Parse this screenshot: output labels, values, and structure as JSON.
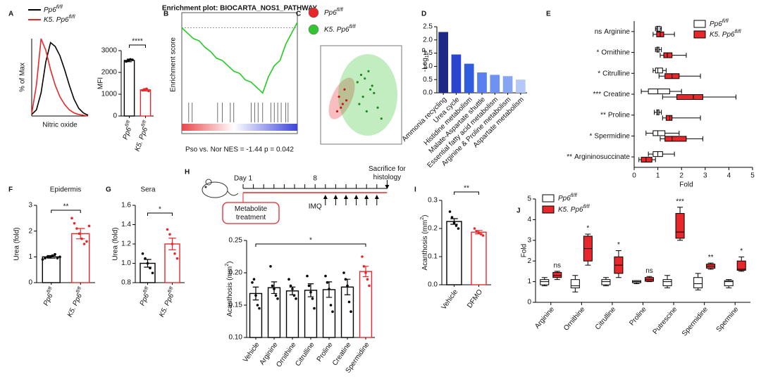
{
  "chart_data": [
    {
      "panel": "A",
      "type": "line",
      "xlabel": "Nitric oxide",
      "ylabel": "% of Max",
      "x": [
        0,
        1,
        2,
        3,
        4,
        5,
        6,
        7,
        8,
        9,
        10,
        11,
        12
      ],
      "xlim": [
        0,
        12
      ],
      "ylim": [
        0,
        100
      ],
      "series": [
        {
          "name": [
            "Pp6",
            "fl/fl"
          ],
          "color": "#000000",
          "values": [
            2,
            8,
            30,
            70,
            95,
            90,
            78,
            60,
            40,
            22,
            10,
            4,
            1
          ]
        },
        {
          "name": [
            "K5. Pp6",
            "fl/fl"
          ],
          "color": "#e8272a",
          "values": [
            3,
            40,
            100,
            85,
            60,
            40,
            25,
            15,
            8,
            4,
            2,
            1,
            0
          ]
        }
      ]
    },
    {
      "type": "bar",
      "ylabel": "MFI",
      "categories": [
        [
          "Pp6",
          "fl/fl"
        ],
        [
          "K5. Pp6",
          "fl/fl"
        ]
      ],
      "values": [
        2550,
        1200
      ],
      "errors": [
        60,
        50
      ],
      "colors": [
        "#000000",
        "#e8272a"
      ],
      "bar_style": "outline",
      "points": [
        [
          2500,
          2550,
          2600,
          2580
        ],
        [
          1180,
          1220,
          1250,
          1150
        ]
      ],
      "ylim": [
        0,
        3000
      ],
      "yticks": [
        0,
        1000,
        2000,
        3000
      ],
      "significance": "****"
    },
    {
      "panel": "B",
      "type": "line",
      "title": "Enrichment plot: BIOCARTA_NOS1_PATHWAY",
      "ylabel": "Enrichment score",
      "caption": "Pso vs. Nor NES = -1.44 p = 0.042",
      "x": [
        0,
        1,
        2,
        3,
        4,
        5,
        6,
        7,
        8,
        9,
        10,
        11,
        12,
        13,
        14,
        15,
        16,
        17,
        18,
        19,
        20
      ],
      "xlim": [
        0,
        20
      ],
      "ylim": [
        -0.65,
        0.1
      ],
      "color": "#22cc22",
      "values": [
        0,
        -0.05,
        -0.1,
        -0.12,
        -0.18,
        -0.22,
        -0.28,
        -0.3,
        -0.35,
        -0.4,
        -0.42,
        -0.48,
        -0.5,
        -0.55,
        -0.6,
        -0.45,
        -0.35,
        -0.3,
        -0.15,
        -0.05,
        0.05
      ]
    },
    {
      "panel": "C",
      "type": "scatter",
      "xlim": [
        -22,
        22
      ],
      "ylim": [
        -15,
        12
      ],
      "series": [
        {
          "name": [
            "Pp6",
            "fl/fl"
          ],
          "color": "#e8272a",
          "x": [
            -12,
            -10,
            -9,
            -13,
            -8,
            -11
          ],
          "values": [
            -2,
            -4,
            0,
            -6,
            -3,
            -5
          ]
        },
        {
          "name": [
            "K5. Pp6",
            "fl/fl"
          ],
          "color": "#33c433",
          "x": [
            -2,
            0,
            2,
            4,
            6,
            1,
            -1,
            3,
            7,
            5,
            9,
            11
          ],
          "values": [
            2,
            4,
            3,
            5,
            1,
            -2,
            -4,
            -6,
            -1,
            0,
            -5,
            -8
          ]
        }
      ]
    },
    {
      "panel": "D",
      "type": "bar",
      "ylabel": [
        "-Log",
        "10",
        "P"
      ],
      "categories": [
        "Ammonia recycling",
        "Urea cycle",
        "Histidine metabolism",
        "Malate-Aspartate shuttle",
        "Essential fatty acid metabolism",
        "Arginine & Proline metabolism",
        "Aspartate metabolism"
      ],
      "values": [
        2.3,
        1.45,
        1.1,
        0.77,
        0.68,
        0.63,
        0.5
      ],
      "bar_style": "filled",
      "colors": [
        "#1c2a86",
        "#2a44cf",
        "#2f5ddd",
        "#5a7fee",
        "#6e92f1",
        "#86a6f3",
        "#b5c8f7"
      ],
      "ylim": [
        0,
        2.5
      ],
      "yticks": [
        {
          "value": 0,
          "label": "0.0"
        },
        0.5,
        {
          "value": 1,
          "label": "1.0"
        },
        1.5,
        {
          "value": 2,
          "label": "2.0"
        },
        2.5
      ]
    },
    {
      "panel": "E",
      "type": "boxplot",
      "orientation": "horizontal",
      "xlabel": "Fold",
      "categories": [
        "Arginine",
        "Ornithine",
        "Citrulline",
        "Creatine",
        "Proline",
        "Spermidine",
        "Argininosuccinate"
      ],
      "significance": [
        "ns",
        "*",
        "*",
        "***",
        "**",
        "*",
        "**"
      ],
      "xlim": [
        0,
        5
      ],
      "xticks": [
        0,
        1,
        2,
        3,
        4,
        5
      ],
      "series": [
        {
          "name": [
            "Pp6",
            "fl/fl"
          ],
          "color": "#ffffff",
          "boxes": [
            [
              0.9,
              0.95,
              1.0,
              1.1,
              1.15
            ],
            [
              0.9,
              0.95,
              1.0,
              1.05,
              1.15
            ],
            [
              0.8,
              0.9,
              1.0,
              1.2,
              1.35
            ],
            [
              0.3,
              0.6,
              1.0,
              1.5,
              2.0
            ],
            [
              0.85,
              0.95,
              1.0,
              1.05,
              1.15
            ],
            [
              0.5,
              0.8,
              1.0,
              1.3,
              1.9
            ],
            [
              0.6,
              0.8,
              1.0,
              1.2,
              1.7
            ]
          ]
        },
        {
          "name": [
            "K5. Pp6",
            "fl/fl"
          ],
          "color": "#e8272a",
          "boxes": [
            [
              0.8,
              0.95,
              1.1,
              1.25,
              1.7
            ],
            [
              1.1,
              1.25,
              1.4,
              1.6,
              2.2
            ],
            [
              1.05,
              1.3,
              1.6,
              1.9,
              2.8
            ],
            [
              1.2,
              1.8,
              2.5,
              2.9,
              4.3
            ],
            [
              1.2,
              1.35,
              1.5,
              1.6,
              2.8
            ],
            [
              1.1,
              1.3,
              1.6,
              2.2,
              2.9
            ],
            [
              0.2,
              0.3,
              0.5,
              0.75,
              0.9
            ]
          ]
        }
      ]
    },
    {
      "panel": "F",
      "type": "bar",
      "title": "Epidermis",
      "ylabel": "Urea (fold)",
      "categories": [
        [
          "Pp6",
          "fl/fl"
        ],
        [
          "K5. Pp6",
          "fl/fl"
        ]
      ],
      "values": [
        1.0,
        1.9
      ],
      "errors": [
        0.05,
        0.2
      ],
      "colors": [
        "#000000",
        "#e8272a"
      ],
      "bar_style": "outline",
      "points": [
        [
          0.9,
          0.95,
          1.0,
          1.0,
          1.05,
          1.1,
          0.95,
          1.0
        ],
        [
          2.5,
          2.3,
          2.1,
          1.9,
          1.7,
          1.5,
          1.6,
          2.2
        ]
      ],
      "ylim": [
        0,
        3
      ],
      "yticks": [
        0,
        1,
        2,
        3
      ],
      "significance": "**"
    },
    {
      "panel": "G",
      "type": "bar",
      "title": "Sera",
      "ylabel": "Urea (fold)",
      "categories": [
        [
          "Pp6",
          "fl/fl"
        ],
        [
          "K5. Pp6",
          "fl/fl"
        ]
      ],
      "values": [
        1.0,
        1.2
      ],
      "errors": [
        0.04,
        0.06
      ],
      "colors": [
        "#000000",
        "#e8272a"
      ],
      "bar_style": "outline",
      "points": [
        [
          1.1,
          1.05,
          1.0,
          0.95,
          0.9
        ],
        [
          1.35,
          1.3,
          1.2,
          1.1,
          1.05
        ]
      ],
      "ylim": [
        0.8,
        1.6
      ],
      "yticks": [
        0.8,
        {
          "value": 1,
          "label": "1.0"
        },
        1.2,
        1.4,
        1.6
      ],
      "significance": "*"
    },
    {
      "panel": "H",
      "type": "bar",
      "ylabel": [
        "Acanthosis (mm",
        "2",
        ")"
      ],
      "timeline": {
        "start": "Day 1",
        "mid": "8",
        "end": [
          "Sacrifice for",
          "histology"
        ],
        "treatment": [
          "Metabolite",
          "treatment"
        ],
        "challenge": "IMQ"
      },
      "categories": [
        "Vehicle",
        "Arginine",
        "Ornithine",
        "Citrulline",
        "Proline",
        "Creatine",
        "Spermidine"
      ],
      "values": [
        0.168,
        0.177,
        0.172,
        0.173,
        0.174,
        0.178,
        0.202
      ],
      "errors": [
        0.01,
        0.009,
        0.006,
        0.01,
        0.012,
        0.012,
        0.008
      ],
      "colors": [
        "#000000",
        "#000000",
        "#000000",
        "#000000",
        "#000000",
        "#000000",
        "#e8272a"
      ],
      "bar_style": "outline",
      "points": [
        [
          0.185,
          0.19,
          0.165,
          0.15,
          0.145
        ],
        [
          0.21,
          0.18,
          0.175,
          0.165,
          0.16
        ],
        [
          0.19,
          0.18,
          0.175,
          0.165,
          0.16
        ],
        [
          0.195,
          0.18,
          0.17,
          0.16,
          0.145
        ],
        [
          0.195,
          0.185,
          0.175,
          0.15,
          0.14
        ],
        [
          0.2,
          0.19,
          0.18,
          0.155,
          0.14
        ],
        [
          0.225,
          0.21,
          0.2,
          0.19,
          0.18
        ]
      ],
      "ylim": [
        0.1,
        0.25
      ],
      "yticks": [
        {
          "value": 0.1,
          "label": "0.10"
        },
        0.15,
        {
          "value": 0.2,
          "label": "0.20"
        },
        0.25
      ],
      "significance": "*"
    },
    {
      "panel": "I",
      "type": "bar",
      "ylabel": [
        "Acanthosis (mm",
        "2",
        ")"
      ],
      "categories": [
        "Vehicle",
        "DFMO"
      ],
      "values": [
        0.225,
        0.187
      ],
      "errors": [
        0.01,
        0.006
      ],
      "colors": [
        "#000000",
        "#e8272a"
      ],
      "bar_style": "outline",
      "points": [
        [
          0.26,
          0.24,
          0.22,
          0.21,
          0.2
        ],
        [
          0.2,
          0.19,
          0.185,
          0.18,
          0.175
        ]
      ],
      "ylim": [
        0,
        0.3
      ],
      "yticks": [
        {
          "value": 0,
          "label": "0.0"
        },
        0.1,
        0.2,
        0.3
      ],
      "significance": "**"
    },
    {
      "panel": "J",
      "type": "boxplot",
      "orientation": "vertical",
      "ylabel": "Fold",
      "categories": [
        "Arginine",
        "Ornithine",
        "Citrulline",
        "Proline",
        "Putrescine",
        "Spermidine",
        "Spermine"
      ],
      "significance": [
        "ns",
        "*",
        "*",
        "ns",
        "***",
        "**",
        "*"
      ],
      "ylim": [
        0,
        5
      ],
      "yticks": [
        0,
        1,
        2,
        3,
        4,
        5
      ],
      "series": [
        {
          "name": [
            "Pp6",
            "fl/fl"
          ],
          "color": "#ffffff",
          "boxes": [
            [
              0.8,
              0.85,
              1.0,
              1.1,
              1.2
            ],
            [
              0.5,
              0.7,
              0.8,
              1.1,
              1.3
            ],
            [
              0.8,
              0.85,
              1.0,
              1.1,
              1.2
            ],
            [
              0.9,
              0.95,
              1.0,
              1.05,
              1.05
            ],
            [
              0.7,
              0.8,
              1.0,
              1.1,
              1.3
            ],
            [
              0.6,
              0.7,
              0.9,
              1.2,
              1.4
            ],
            [
              0.7,
              0.8,
              1.0,
              1.05,
              1.1
            ]
          ]
        },
        {
          "name": [
            "K5. Pp6",
            "fl/fl"
          ],
          "color": "#e8272a",
          "boxes": [
            [
              1.1,
              1.2,
              1.3,
              1.45,
              1.5
            ],
            [
              1.8,
              2.0,
              2.6,
              3.2,
              3.3
            ],
            [
              1.2,
              1.4,
              1.8,
              2.2,
              2.5
            ],
            [
              1.0,
              1.02,
              1.1,
              1.2,
              1.25
            ],
            [
              3.0,
              3.1,
              3.4,
              4.3,
              4.6
            ],
            [
              1.6,
              1.65,
              1.75,
              1.85,
              1.9
            ],
            [
              1.5,
              1.55,
              1.6,
              2.0,
              2.2
            ]
          ]
        }
      ]
    }
  ]
}
